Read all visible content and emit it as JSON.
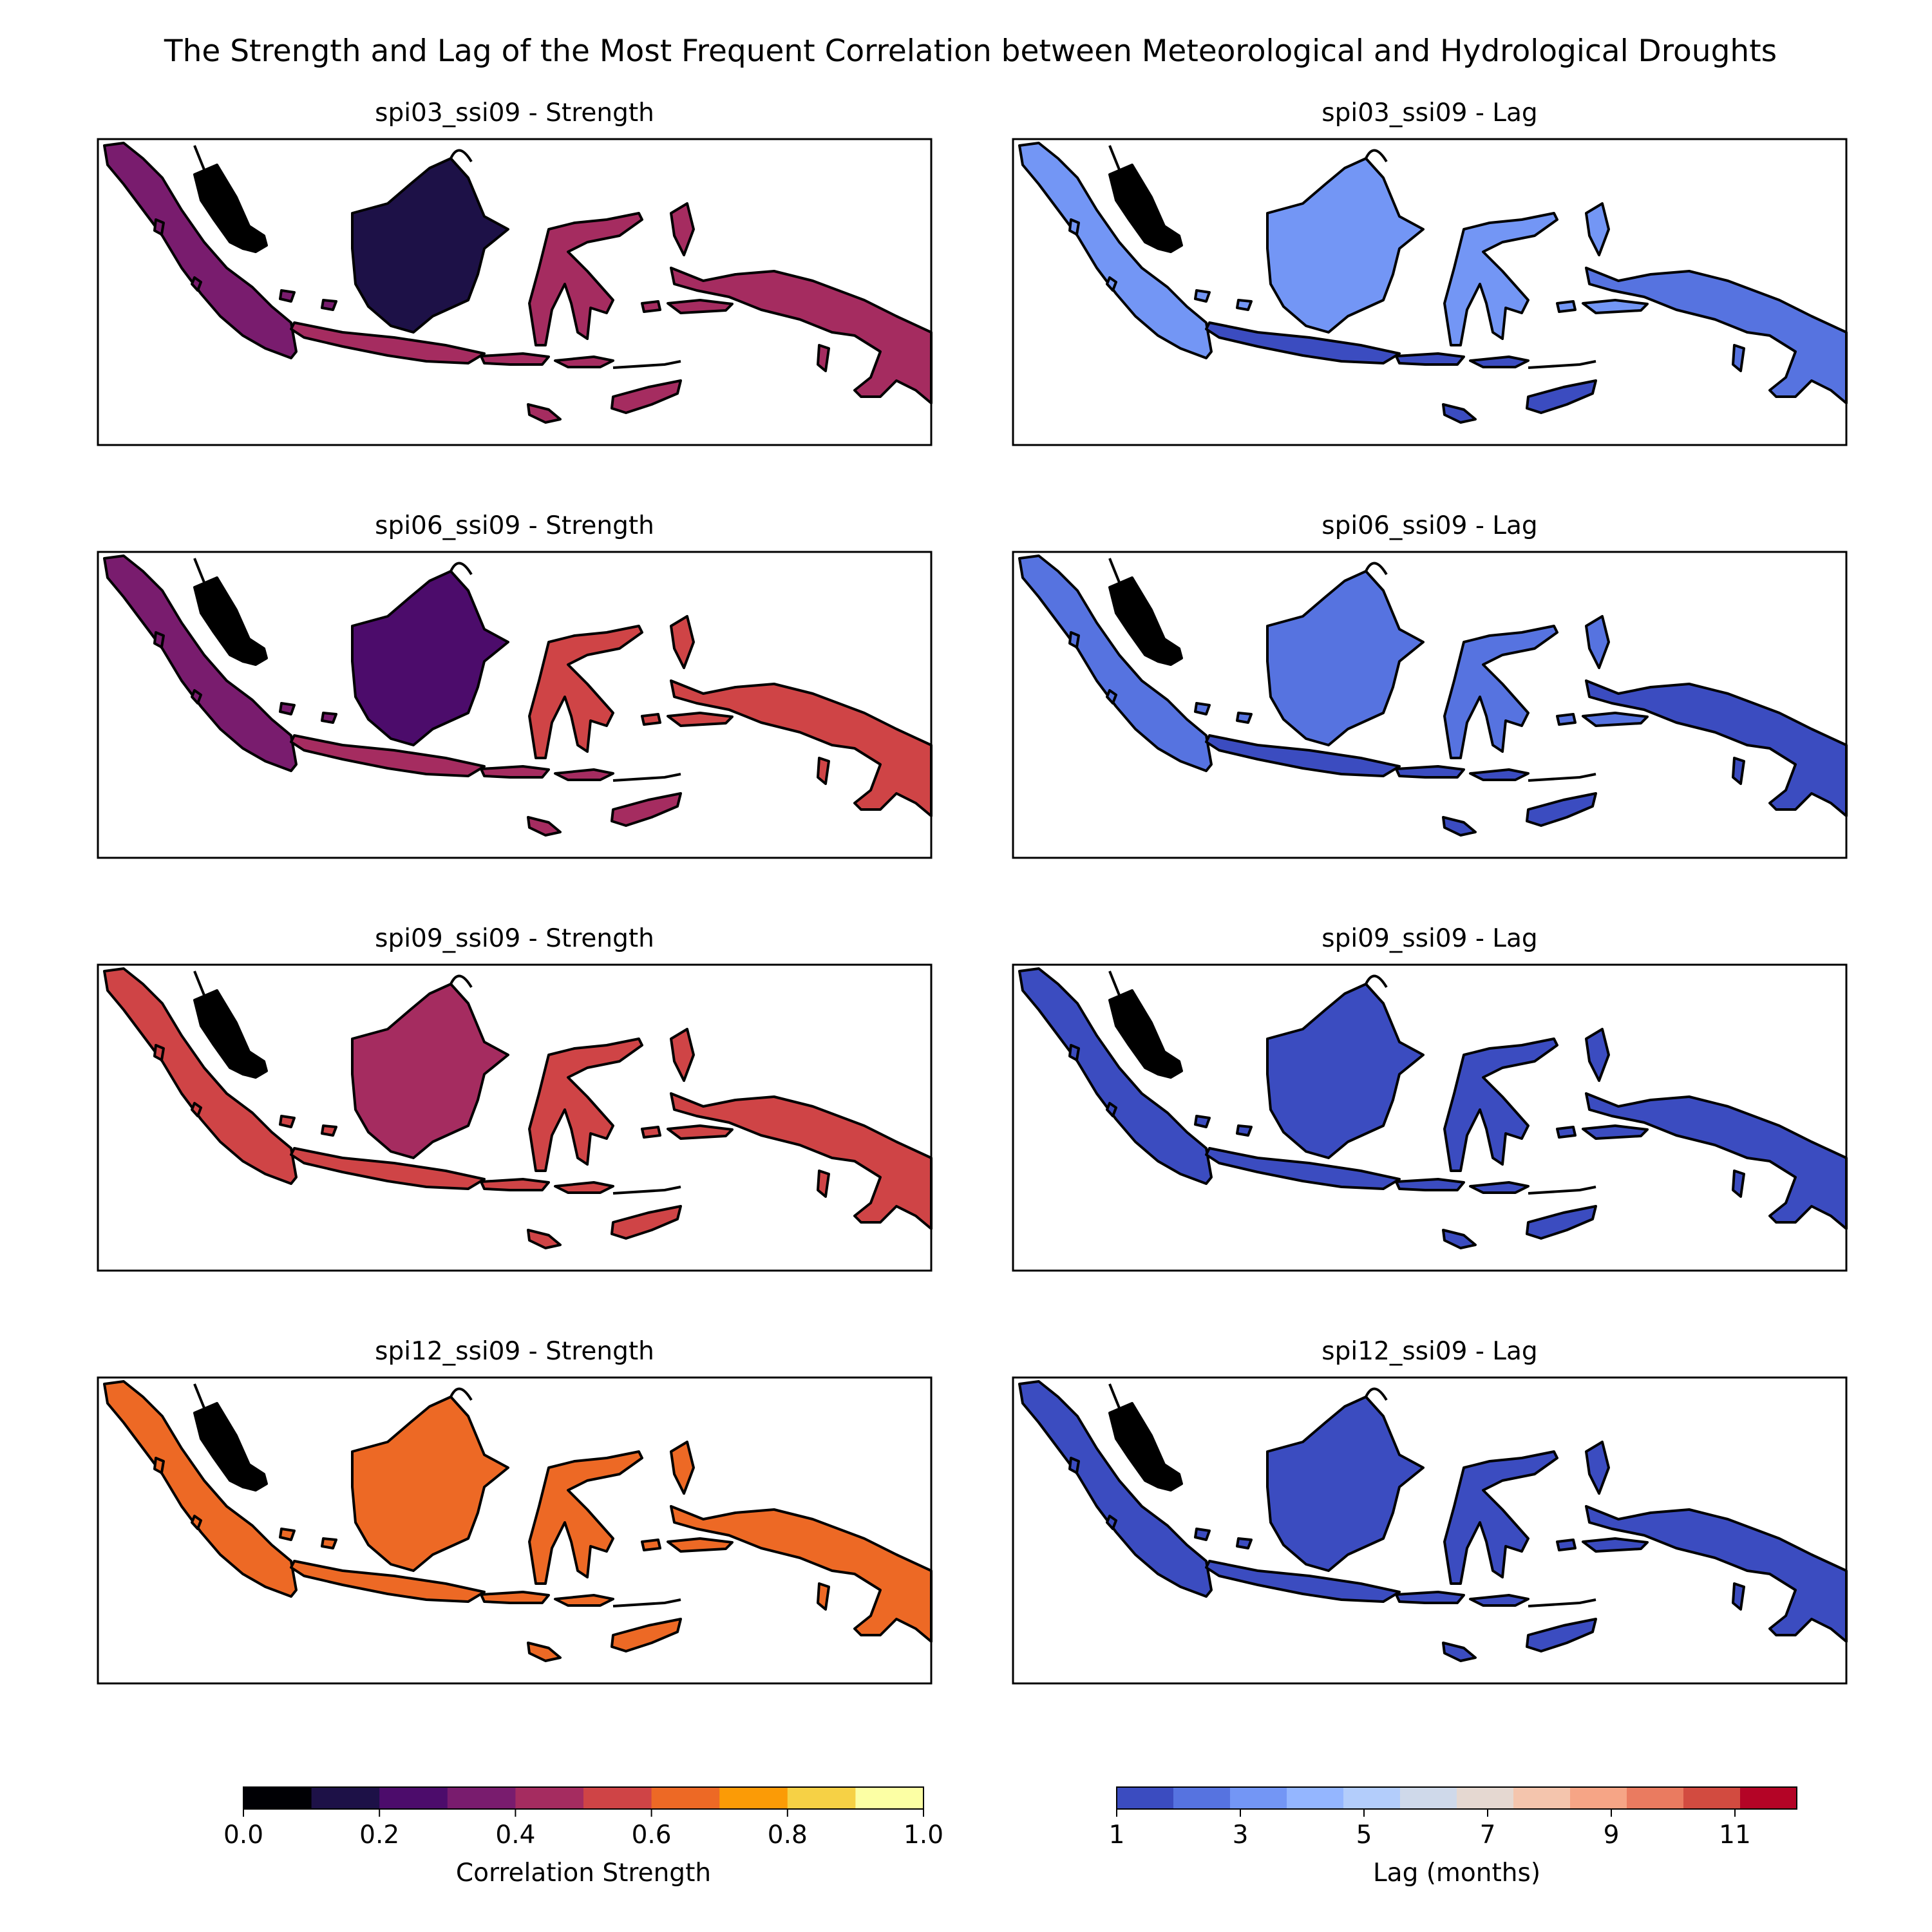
{
  "chart_data": {
    "type": "heatmap",
    "title": "The Strength and Lag of the Most Frequent Correlation between Meteorological and Hydrological Droughts",
    "panels": [
      {
        "id": "spi03_ssi09-strength",
        "title": "spi03_ssi09 - Strength",
        "variable": "strength",
        "spi": "spi03",
        "sumatra": 0.35,
        "borneo": 0.15,
        "sulawesi": 0.45,
        "java": 0.45,
        "papua": 0.45
      },
      {
        "id": "spi03_ssi09-lag",
        "title": "spi03_ssi09 - Lag",
        "variable": "lag",
        "spi": "spi03",
        "sumatra": 3,
        "borneo": 3,
        "sulawesi": 3,
        "java": 1,
        "papua": 2
      },
      {
        "id": "spi06_ssi09-strength",
        "title": "spi06_ssi09 - Strength",
        "variable": "strength",
        "spi": "spi06",
        "sumatra": 0.35,
        "borneo": 0.2,
        "sulawesi": 0.5,
        "java": 0.45,
        "papua": 0.55
      },
      {
        "id": "spi06_ssi09-lag",
        "title": "spi06_ssi09 - Lag",
        "variable": "lag",
        "spi": "spi06",
        "sumatra": 2,
        "borneo": 2,
        "sulawesi": 2,
        "java": 1,
        "papua": 1
      },
      {
        "id": "spi09_ssi09-strength",
        "title": "spi09_ssi09 - Strength",
        "variable": "strength",
        "spi": "spi09",
        "sumatra": 0.5,
        "borneo": 0.45,
        "sulawesi": 0.55,
        "java": 0.5,
        "papua": 0.55
      },
      {
        "id": "spi09_ssi09-lag",
        "title": "spi09_ssi09 - Lag",
        "variable": "lag",
        "spi": "spi09",
        "sumatra": 1,
        "borneo": 1,
        "sulawesi": 1,
        "java": 1,
        "papua": 1
      },
      {
        "id": "spi12_ssi09-strength",
        "title": "spi12_ssi09 - Strength",
        "variable": "strength",
        "spi": "spi12",
        "sumatra": 0.65,
        "borneo": 0.65,
        "sulawesi": 0.65,
        "java": 0.6,
        "papua": 0.6
      },
      {
        "id": "spi12_ssi09-lag",
        "title": "spi12_ssi09 - Lag",
        "variable": "lag",
        "spi": "spi12",
        "sumatra": 1,
        "borneo": 1,
        "sulawesi": 1,
        "java": 1,
        "papua": 1
      }
    ],
    "colorbars": [
      {
        "name": "strength",
        "label": "Correlation Strength",
        "range": [
          0.0,
          1.0
        ],
        "ticks": [
          "0.0",
          "0.2",
          "0.4",
          "0.6",
          "0.8",
          "1.0"
        ],
        "colors": [
          "#000004",
          "#1d1147",
          "#4c0c6b",
          "#791c6e",
          "#a52c60",
          "#cf4446",
          "#ed6925",
          "#fb9b06",
          "#f6d145",
          "#fcffa4"
        ]
      },
      {
        "name": "lag",
        "label": "Lag (months)",
        "range": [
          1,
          12
        ],
        "ticks": [
          "1",
          "3",
          "5",
          "7",
          "9",
          "11"
        ],
        "colors": [
          "#3b4cc0",
          "#5673e0",
          "#7396f5",
          "#94b6ff",
          "#b3cdfb",
          "#cfd9ea",
          "#e5d8d1",
          "#f4c5ad",
          "#f6a586",
          "#ea7b60",
          "#d24b40",
          "#b40426"
        ]
      }
    ]
  }
}
